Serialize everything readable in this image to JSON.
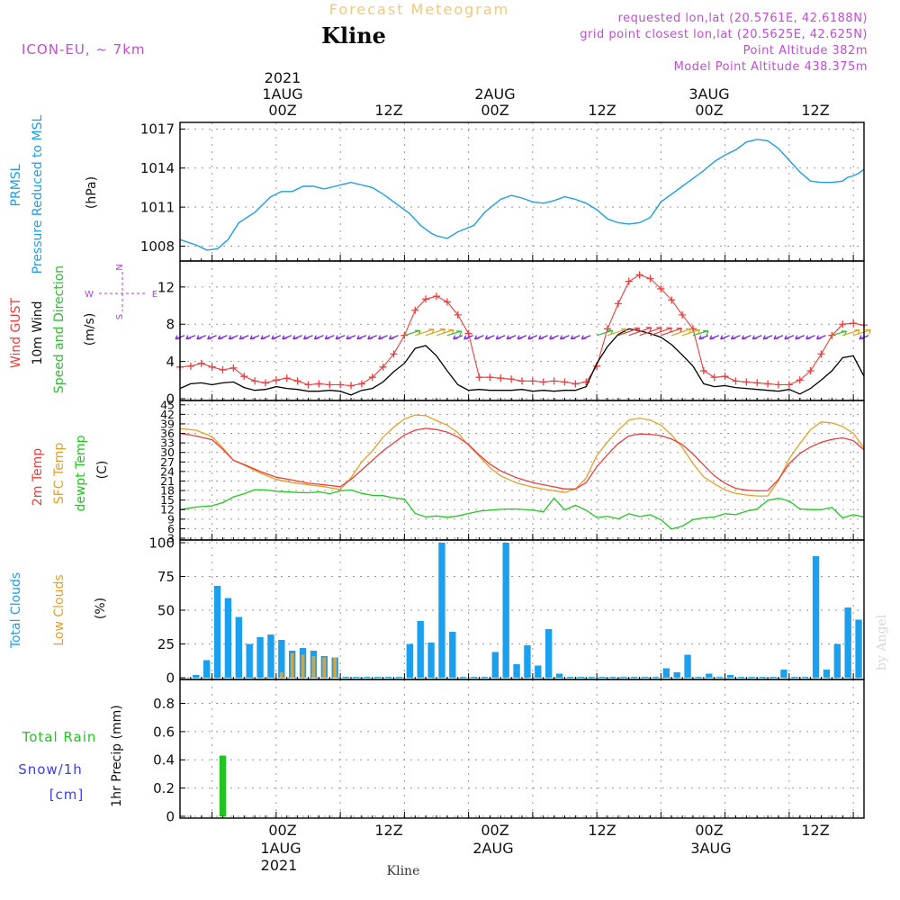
{
  "header": {
    "product_title": "Forecast Meteogram",
    "station": "Kline",
    "model": "ICON-EU, ~ 7km",
    "requested": "requested lon,lat (20.5761E, 42.6188N)",
    "grid_point": "grid point closest lon,lat (20.5625E, 42.625N)",
    "point_altitude": "Point Altitude 382m",
    "model_point_altitude": "Model Point Altitude 438.375m"
  },
  "footer": {
    "station": "Kline",
    "credit": "by Angel"
  },
  "time_axis": {
    "hour_ticks": [
      "00Z",
      "12Z",
      "00Z",
      "12Z",
      "00Z",
      "12Z"
    ],
    "dates": [
      "1AUG",
      "2AUG",
      "3AUG"
    ],
    "year": "2021"
  },
  "colors": {
    "pressure": "#1e9ee6",
    "gust": "#f03c3c",
    "wind": "#000000",
    "wind_dir": "#2ec02e",
    "temp": "#f03c3c",
    "sfc_temp": "#e6a028",
    "dewpt": "#1ec81e",
    "total_clouds": "#1aa0ee",
    "low_clouds": "#e6a028",
    "rain": "#21c421",
    "snow": "#3c3cf0",
    "wind_vectors": "#7a28e6",
    "header_purple": "#c24cd8",
    "title_orange": "#f0c880"
  },
  "panels": {
    "pressure": {
      "labels": [
        "PRMSL",
        "Pressure Reduced to MSL",
        "(hPa)"
      ]
    },
    "wind": {
      "labels": [
        "Wind GUST",
        "10m Wind",
        "Speed and Direction",
        "(m/s)"
      ],
      "compass": {
        "n": "N",
        "s": "S",
        "w": "W",
        "e": "E"
      }
    },
    "temp": {
      "labels": [
        "2m Temp",
        "SFC Temp",
        "dewpt Temp",
        "(C)"
      ]
    },
    "clouds": {
      "labels": [
        "Total Clouds",
        "Low Clouds",
        "(%)"
      ]
    },
    "precip": {
      "labels": [
        "Total Rain",
        "Snow/1h",
        "[cm]",
        "1hr Precip (mm)"
      ]
    }
  },
  "chart_data": [
    {
      "type": "line",
      "panel": "pressure",
      "x_unit": "hours since 2021-07-31 18Z",
      "yticks": [
        "1008",
        "1011",
        "1014",
        "1017"
      ],
      "ylim": [
        1007,
        1017.3
      ],
      "series": [
        {
          "name": "PRMSL",
          "x": [
            0,
            3,
            5,
            7,
            9,
            11,
            14,
            16,
            17,
            19,
            21,
            23,
            25,
            27,
            29,
            32,
            34,
            36,
            38,
            40,
            43,
            45,
            47,
            48,
            50,
            52,
            55,
            57,
            60,
            62,
            64,
            66,
            68,
            70,
            72,
            74,
            76,
            78,
            80,
            82,
            84,
            86,
            88,
            90,
            92,
            94,
            96,
            98,
            100,
            102,
            104,
            106,
            108,
            110,
            112,
            114,
            116,
            118,
            120,
            122,
            124,
            125,
            126,
            127,
            128
          ],
          "values": [
            1008.5,
            1008.1,
            1007.7,
            1007.8,
            1008.5,
            1009.8,
            1010.6,
            1011.4,
            1011.8,
            1012.2,
            1012.2,
            1012.6,
            1012.6,
            1012.4,
            1012.6,
            1012.9,
            1012.7,
            1012.5,
            1012.0,
            1011.4,
            1010.5,
            1009.6,
            1009.0,
            1008.8,
            1008.6,
            1009.1,
            1009.6,
            1010.6,
            1011.6,
            1011.9,
            1011.7,
            1011.4,
            1011.3,
            1011.5,
            1011.8,
            1011.6,
            1011.3,
            1010.8,
            1010.1,
            1009.8,
            1009.7,
            1009.8,
            1010.2,
            1011.4,
            1012.0,
            1012.6,
            1013.2,
            1013.8,
            1014.5,
            1015.0,
            1015.4,
            1016.0,
            1016.2,
            1016.1,
            1015.5,
            1014.6,
            1013.7,
            1013.0,
            1012.9,
            1012.9,
            1013.0,
            1013.3,
            1013.4,
            1013.6,
            1013.9
          ]
        }
      ]
    },
    {
      "type": "line",
      "panel": "wind",
      "x_unit": "hours since 2021-07-31 18Z",
      "yticks": [
        "0",
        "4",
        "8",
        "12"
      ],
      "ylim": [
        0,
        14.5
      ],
      "series": [
        {
          "name": "Wind GUST",
          "x": [
            0,
            2,
            4,
            6,
            8,
            10,
            12,
            14,
            16,
            18,
            20,
            22,
            24,
            26,
            28,
            30,
            32,
            34,
            36,
            38,
            40,
            42,
            44,
            46,
            48,
            50,
            52,
            54,
            56,
            58,
            60,
            62,
            64,
            66,
            68,
            70,
            72,
            74,
            76,
            78,
            80,
            82,
            84,
            86,
            88,
            90,
            92,
            94,
            96,
            98,
            100,
            102,
            104,
            106,
            108,
            110,
            112,
            114,
            116,
            118,
            120,
            122,
            124,
            126,
            128
          ],
          "values": [
            3.4,
            3.5,
            3.8,
            3.4,
            3.1,
            3.3,
            2.4,
            1.9,
            1.7,
            2.0,
            2.2,
            1.9,
            1.5,
            1.6,
            1.5,
            1.5,
            1.4,
            1.6,
            2.3,
            3.4,
            4.8,
            6.8,
            9.5,
            10.7,
            11.0,
            10.4,
            9.0,
            7.0,
            2.3,
            2.3,
            2.2,
            2.1,
            1.9,
            1.9,
            1.8,
            1.9,
            1.8,
            1.6,
            1.8,
            3.5,
            7.5,
            10.2,
            12.6,
            13.3,
            12.9,
            11.8,
            10.6,
            9.0,
            7.5,
            3.0,
            2.3,
            2.4,
            1.9,
            1.8,
            1.7,
            1.6,
            1.5,
            1.5,
            2.0,
            3.0,
            4.8,
            6.8,
            8.0,
            8.1,
            7.9
          ]
        },
        {
          "name": "10m Wind",
          "x": [
            0,
            2,
            4,
            6,
            8,
            10,
            12,
            14,
            16,
            18,
            20,
            22,
            24,
            26,
            28,
            30,
            32,
            34,
            36,
            38,
            40,
            42,
            44,
            46,
            48,
            50,
            52,
            54,
            56,
            58,
            60,
            62,
            64,
            66,
            68,
            70,
            72,
            74,
            76,
            78,
            80,
            82,
            84,
            86,
            88,
            90,
            92,
            94,
            96,
            98,
            100,
            102,
            104,
            106,
            108,
            110,
            112,
            114,
            116,
            118,
            120,
            122,
            124,
            126,
            128
          ],
          "values": [
            1.1,
            1.6,
            1.7,
            1.5,
            1.7,
            1.8,
            1.2,
            0.9,
            1.0,
            1.3,
            1.1,
            1.0,
            0.8,
            0.8,
            0.9,
            0.8,
            0.4,
            0.9,
            1.1,
            1.8,
            2.9,
            3.8,
            5.4,
            5.7,
            4.6,
            3.0,
            1.5,
            0.9,
            1.0,
            0.9,
            0.9,
            0.9,
            1.0,
            0.8,
            0.9,
            0.8,
            0.9,
            0.9,
            1.3,
            3.8,
            5.6,
            6.9,
            7.5,
            7.3,
            7.0,
            6.6,
            5.8,
            4.7,
            3.5,
            1.6,
            1.3,
            1.4,
            1.2,
            1.1,
            1.0,
            0.9,
            0.8,
            1.0,
            0.5,
            1.1,
            2.0,
            3.0,
            4.4,
            4.6,
            2.4
          ]
        }
      ]
    },
    {
      "type": "line",
      "panel": "temp",
      "x_unit": "hours since 2021-07-31 18Z",
      "yticks": [
        "3",
        "6",
        "9",
        "12",
        "15",
        "18",
        "21",
        "24",
        "27",
        "30",
        "33",
        "36",
        "39",
        "42",
        "45"
      ],
      "ylim": [
        3,
        45.5
      ],
      "series": [
        {
          "name": "2m Temp",
          "x": [
            0,
            3,
            6,
            8,
            10,
            12,
            15,
            18,
            21,
            24,
            27,
            30,
            32,
            34,
            36,
            38,
            40,
            42,
            44,
            46,
            48,
            50,
            52,
            54,
            56,
            58,
            60,
            63,
            66,
            69,
            72,
            74,
            76,
            78,
            80,
            82,
            84,
            86,
            88,
            90,
            92,
            94,
            96,
            98,
            100,
            102,
            104,
            106,
            108,
            110,
            112,
            114,
            116,
            118,
            120,
            122,
            124,
            126,
            128
          ],
          "values": [
            36,
            35.2,
            34,
            31,
            27.5,
            26.2,
            24,
            22.2,
            21.3,
            20.3,
            19.8,
            19.2,
            21.5,
            24.5,
            27.5,
            30.5,
            33,
            35.5,
            37,
            37.6,
            37.2,
            36.4,
            34.8,
            32.5,
            29.2,
            26.3,
            24.2,
            22,
            20.5,
            19.5,
            18.5,
            18.5,
            20.5,
            25.5,
            29.3,
            32.8,
            35.2,
            35.8,
            35.7,
            35.3,
            34.2,
            32.5,
            29.5,
            26,
            22.6,
            20.3,
            18.7,
            18.1,
            17.9,
            18,
            21.5,
            26.5,
            29.7,
            31.7,
            33.2,
            34.1,
            34.6,
            33.7,
            30.8
          ]
        },
        {
          "name": "SFC Temp",
          "x": [
            0,
            3,
            6,
            8,
            10,
            12,
            15,
            18,
            21,
            24,
            27,
            30,
            32,
            34,
            36,
            38,
            40,
            42,
            44,
            46,
            48,
            50,
            52,
            54,
            56,
            58,
            60,
            63,
            66,
            69,
            72,
            74,
            76,
            78,
            80,
            82,
            84,
            86,
            88,
            90,
            92,
            94,
            96,
            98,
            100,
            102,
            104,
            106,
            108,
            110,
            112,
            114,
            116,
            118,
            120,
            122,
            124,
            126,
            128
          ],
          "values": [
            37.5,
            37,
            35,
            31.5,
            27.5,
            26,
            23.5,
            21.5,
            20.5,
            19.8,
            19.2,
            18.3,
            22,
            27,
            30.5,
            34.8,
            38,
            40.5,
            41.8,
            41.6,
            40,
            38.6,
            36.2,
            32.2,
            28.8,
            25.2,
            22.6,
            20.4,
            19.1,
            18.2,
            17.4,
            18.5,
            22,
            29,
            33.3,
            37,
            40.2,
            40.8,
            40.2,
            38.6,
            35.5,
            31.6,
            26.5,
            22.3,
            20.1,
            18.2,
            17.1,
            16.6,
            16.3,
            16.3,
            21.2,
            28,
            32.8,
            37.2,
            39.6,
            39.3,
            38.2,
            36,
            31.4
          ]
        },
        {
          "name": "dewpt Temp",
          "x": [
            0,
            3,
            6,
            8,
            10,
            12,
            14,
            16,
            18,
            20,
            22,
            24,
            26,
            28,
            30,
            32,
            34,
            36,
            38,
            40,
            42,
            44,
            46,
            48,
            50,
            52,
            54,
            56,
            58,
            60,
            62,
            64,
            66,
            68,
            70,
            72,
            74,
            76,
            78,
            80,
            82,
            84,
            86,
            88,
            90,
            92,
            94,
            96,
            98,
            100,
            102,
            104,
            106,
            108,
            110,
            112,
            114,
            116,
            118,
            120,
            122,
            124,
            126,
            128
          ],
          "values": [
            12,
            12.8,
            13.2,
            14.2,
            16,
            17,
            18.3,
            18.2,
            17.8,
            17.6,
            17.4,
            17.3,
            17.6,
            17,
            17.9,
            18.2,
            17.1,
            16.5,
            16.4,
            15.7,
            15.3,
            10.8,
            9.7,
            10,
            9.6,
            10,
            10.8,
            11.5,
            11.8,
            12.1,
            12.2,
            12.1,
            11.8,
            11.3,
            15.6,
            11.9,
            13.4,
            11.8,
            9.5,
            9.9,
            9.1,
            10.7,
            9.8,
            10.4,
            8.8,
            5.9,
            6.8,
            8.8,
            9.4,
            9.7,
            10.7,
            10.4,
            11.5,
            12.2,
            14.9,
            15.6,
            14.7,
            12.2,
            12,
            12,
            12.7,
            9.4,
            10.4,
            9.7
          ]
        }
      ]
    },
    {
      "type": "bar",
      "panel": "clouds",
      "x_unit": "hours since 2021-07-31 18Z",
      "yticks": [
        "0",
        "25",
        "50",
        "75",
        "100"
      ],
      "ylim": [
        0,
        100
      ],
      "series": [
        {
          "name": "Total Clouds",
          "x": [
            3,
            5,
            7,
            9,
            11,
            13,
            15,
            17,
            19,
            21,
            23,
            25,
            27,
            29,
            31,
            33,
            35,
            37,
            39,
            41,
            43,
            45,
            47,
            49,
            51,
            53,
            55,
            57,
            59,
            61,
            63,
            65,
            67,
            69,
            71,
            73,
            75,
            77,
            79,
            81,
            83,
            85,
            87,
            89,
            91,
            93,
            95,
            97,
            99,
            101,
            103,
            105,
            107,
            109,
            111,
            113,
            115,
            117,
            119,
            121,
            123,
            125,
            127
          ],
          "values": [
            2,
            13,
            68,
            59,
            45,
            25,
            30,
            32,
            28,
            20,
            22,
            20,
            16,
            15,
            0,
            0,
            0,
            0,
            0,
            0,
            25,
            42,
            26,
            100,
            34,
            0,
            0,
            0,
            19,
            100,
            10,
            24,
            9,
            36,
            3,
            0,
            0,
            0,
            0,
            0,
            0,
            0,
            0,
            0,
            7,
            4,
            17,
            0,
            3,
            0,
            2,
            0,
            0,
            0,
            0,
            6,
            0,
            0,
            90,
            6,
            25,
            52,
            43
          ]
        },
        {
          "name": "Low Clouds",
          "x": [
            19,
            21,
            23,
            25,
            27,
            29
          ],
          "values": [
            4,
            18,
            17,
            16,
            15,
            15
          ]
        }
      ]
    },
    {
      "type": "bar",
      "panel": "precip",
      "x_unit": "hours since 2021-07-31 18Z",
      "yticks": [
        "0",
        "0.2",
        "0.4",
        "0.6",
        "0.8"
      ],
      "ylim": [
        0,
        0.95
      ],
      "series": [
        {
          "name": "Total Rain",
          "x": [
            8
          ],
          "values": [
            0.43
          ]
        }
      ]
    }
  ]
}
